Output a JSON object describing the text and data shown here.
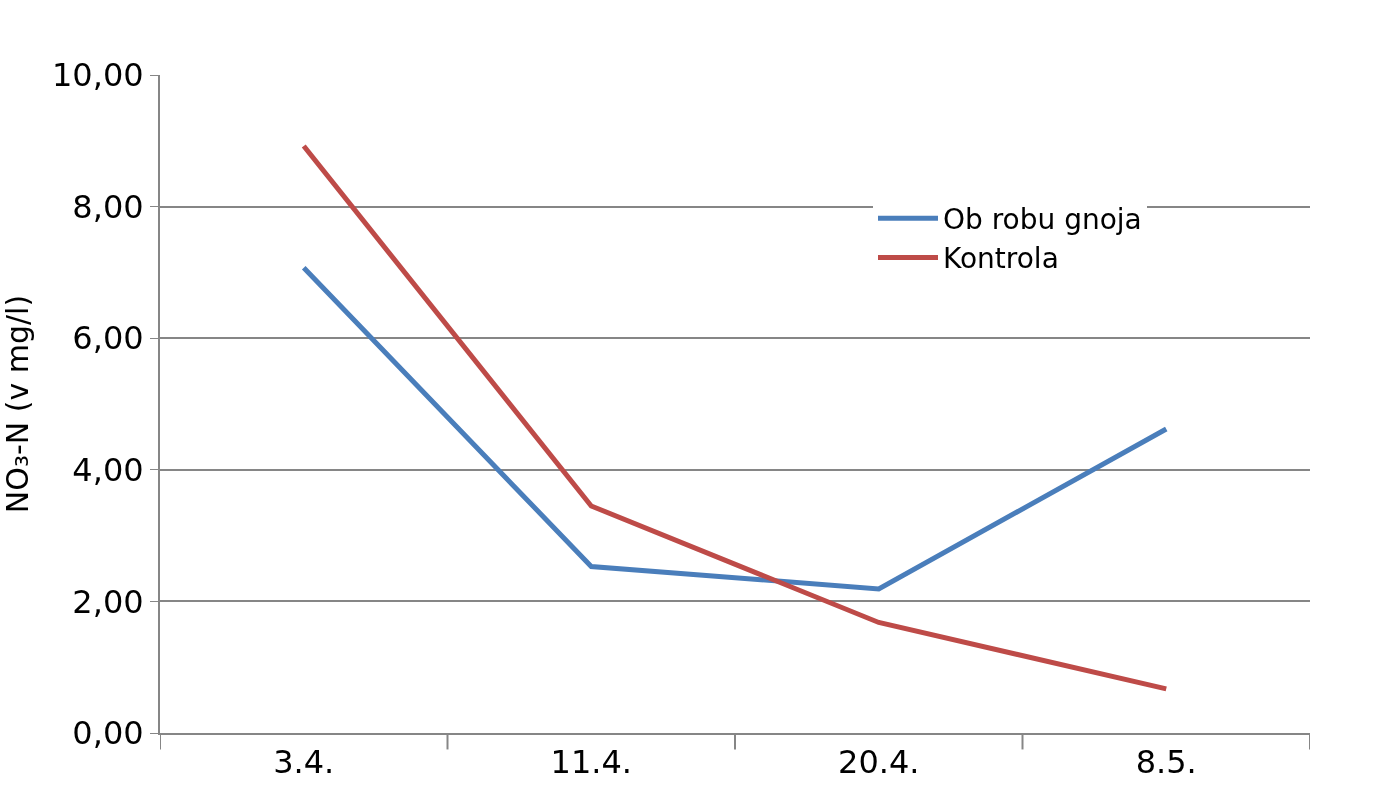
{
  "chart_data": {
    "type": "line",
    "ylabel": "NO₃-N (v mg/l)",
    "categories": [
      "3.4.",
      "11.4.",
      "20.4.",
      "8.5."
    ],
    "series": [
      {
        "name": "Ob robu gnoja",
        "color": "#4a7ebb",
        "values": [
          7.07,
          2.53,
          2.19,
          4.62
        ]
      },
      {
        "name": "Kontrola",
        "color": "#be4b48",
        "values": [
          8.92,
          3.45,
          1.68,
          0.67
        ]
      }
    ],
    "ylim": [
      0,
      10
    ],
    "yticks": [
      {
        "value": 0,
        "label": "0,00"
      },
      {
        "value": 2,
        "label": "2,00"
      },
      {
        "value": 4,
        "label": "4,00"
      },
      {
        "value": 6,
        "label": "6,00"
      },
      {
        "value": 8,
        "label": "8,00"
      },
      {
        "value": 10,
        "label": "10,00"
      }
    ],
    "grid": "y",
    "legend": "top right",
    "marker": "none",
    "line_style": "solid"
  }
}
